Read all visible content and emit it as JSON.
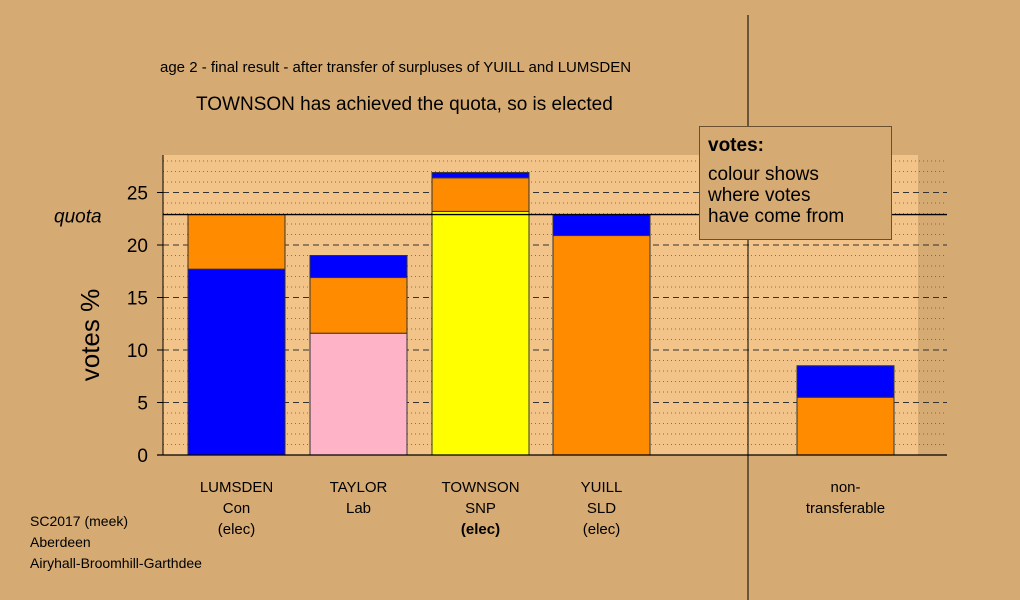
{
  "header": {
    "stage_text": "age 2 - final result - after transfer of surpluses of YUILL and LUMSDEN",
    "status_text": "TOWNSON has achieved the quota, so is elected"
  },
  "legend": {
    "title": "votes:",
    "lines": [
      "colour shows",
      "where votes",
      "have come from"
    ]
  },
  "footer": {
    "lines": [
      "SC2017 (meek)",
      "Aberdeen",
      "Airyhall-Broomhill-Garthdee"
    ]
  },
  "colors": {
    "background": "#d5aa73",
    "plot_area": "#f2c489",
    "Con": "#0000ff",
    "Lab": "#ffb3c6",
    "SNP": "#ffff00",
    "SLD": "#ff8c00"
  },
  "chart_data": {
    "type": "bar",
    "stacked": true,
    "ylabel": "votes %",
    "ylim": [
      0,
      28
    ],
    "yticks": [
      0,
      5,
      10,
      15,
      20,
      25
    ],
    "quota": 22.9,
    "quota_label": "quota",
    "grid": true,
    "legend_position": "top-right",
    "categories": [
      {
        "lines": [
          "LUMSDEN",
          "Con",
          "(elec)"
        ],
        "bold_last": false
      },
      {
        "lines": [
          "TAYLOR",
          "Lab"
        ],
        "bold_last": false
      },
      {
        "lines": [
          "TOWNSON",
          "SNP",
          "(elec)"
        ],
        "bold_last": true
      },
      {
        "lines": [
          "YUILL",
          "SLD",
          "(elec)"
        ],
        "bold_last": false
      },
      {
        "lines": [
          "non-",
          "transferable"
        ],
        "bold_last": false
      }
    ],
    "series": [
      {
        "colorKey": "SNP",
        "values": [
          0,
          0,
          23.2,
          0,
          0
        ]
      },
      {
        "colorKey": "Lab",
        "values": [
          0,
          11.6,
          0,
          0,
          0
        ]
      },
      {
        "colorKey": "Con",
        "values": [
          17.7,
          0,
          0,
          0,
          0
        ]
      },
      {
        "colorKey": "SLD",
        "values": [
          5.2,
          5.3,
          3.2,
          20.9,
          5.5
        ]
      },
      {
        "colorKey": "Con",
        "values": [
          0,
          2.1,
          0.5,
          2.0,
          3.0
        ]
      }
    ]
  }
}
